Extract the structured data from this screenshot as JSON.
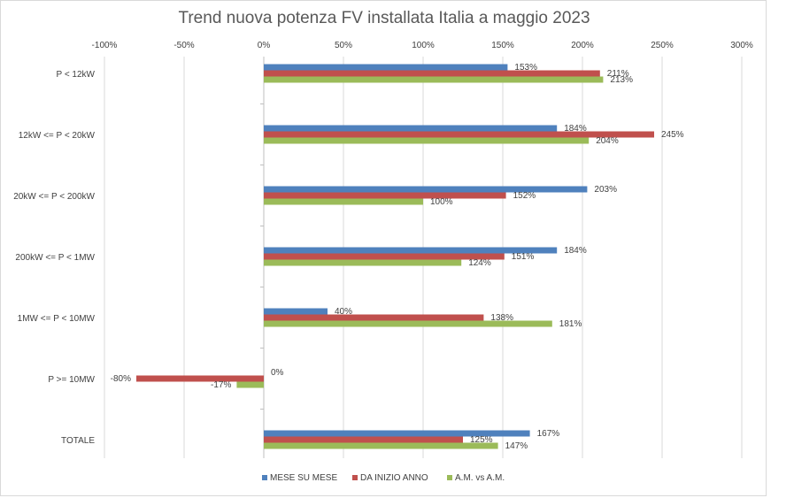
{
  "chart_data": {
    "type": "bar",
    "orientation": "horizontal",
    "title": "Trend nuova potenza FV installata Italia a maggio 2023",
    "categories": [
      "P < 12kW",
      "12kW <= P < 20kW",
      "20kW <= P < 200kW",
      "200kW <= P < 1MW",
      "1MW <= P < 10MW",
      "P >= 10MW",
      "TOTALE"
    ],
    "series": [
      {
        "name": "MESE SU  MESE",
        "color": "#4f81bd",
        "values": [
          153,
          184,
          203,
          184,
          40,
          0,
          167
        ]
      },
      {
        "name": "DA INIZIO ANNO",
        "color": "#c0504d",
        "values": [
          211,
          245,
          152,
          151,
          138,
          -80,
          125
        ]
      },
      {
        "name": "A.M. vs A.M.",
        "color": "#9bbb59",
        "values": [
          213,
          204,
          100,
          124,
          181,
          -17,
          147
        ]
      }
    ],
    "value_labels": [
      [
        "153%",
        "184%",
        "203%",
        "184%",
        "40%",
        "0%",
        "167%"
      ],
      [
        "211%",
        "245%",
        "152%",
        "151%",
        "138%",
        "-80%",
        "125%"
      ],
      [
        "213%",
        "204%",
        "100%",
        "124%",
        "181%",
        "-17%",
        "147%"
      ]
    ],
    "x_ticks": [
      "-100%",
      "-50%",
      "0%",
      "50%",
      "100%",
      "150%",
      "200%",
      "250%",
      "300%"
    ],
    "x_tick_values": [
      -100,
      -50,
      0,
      50,
      100,
      150,
      200,
      250,
      300
    ],
    "xlim": [
      -100,
      300
    ],
    "x_axis_position": "top",
    "grid": true,
    "legend_position": "bottom"
  }
}
